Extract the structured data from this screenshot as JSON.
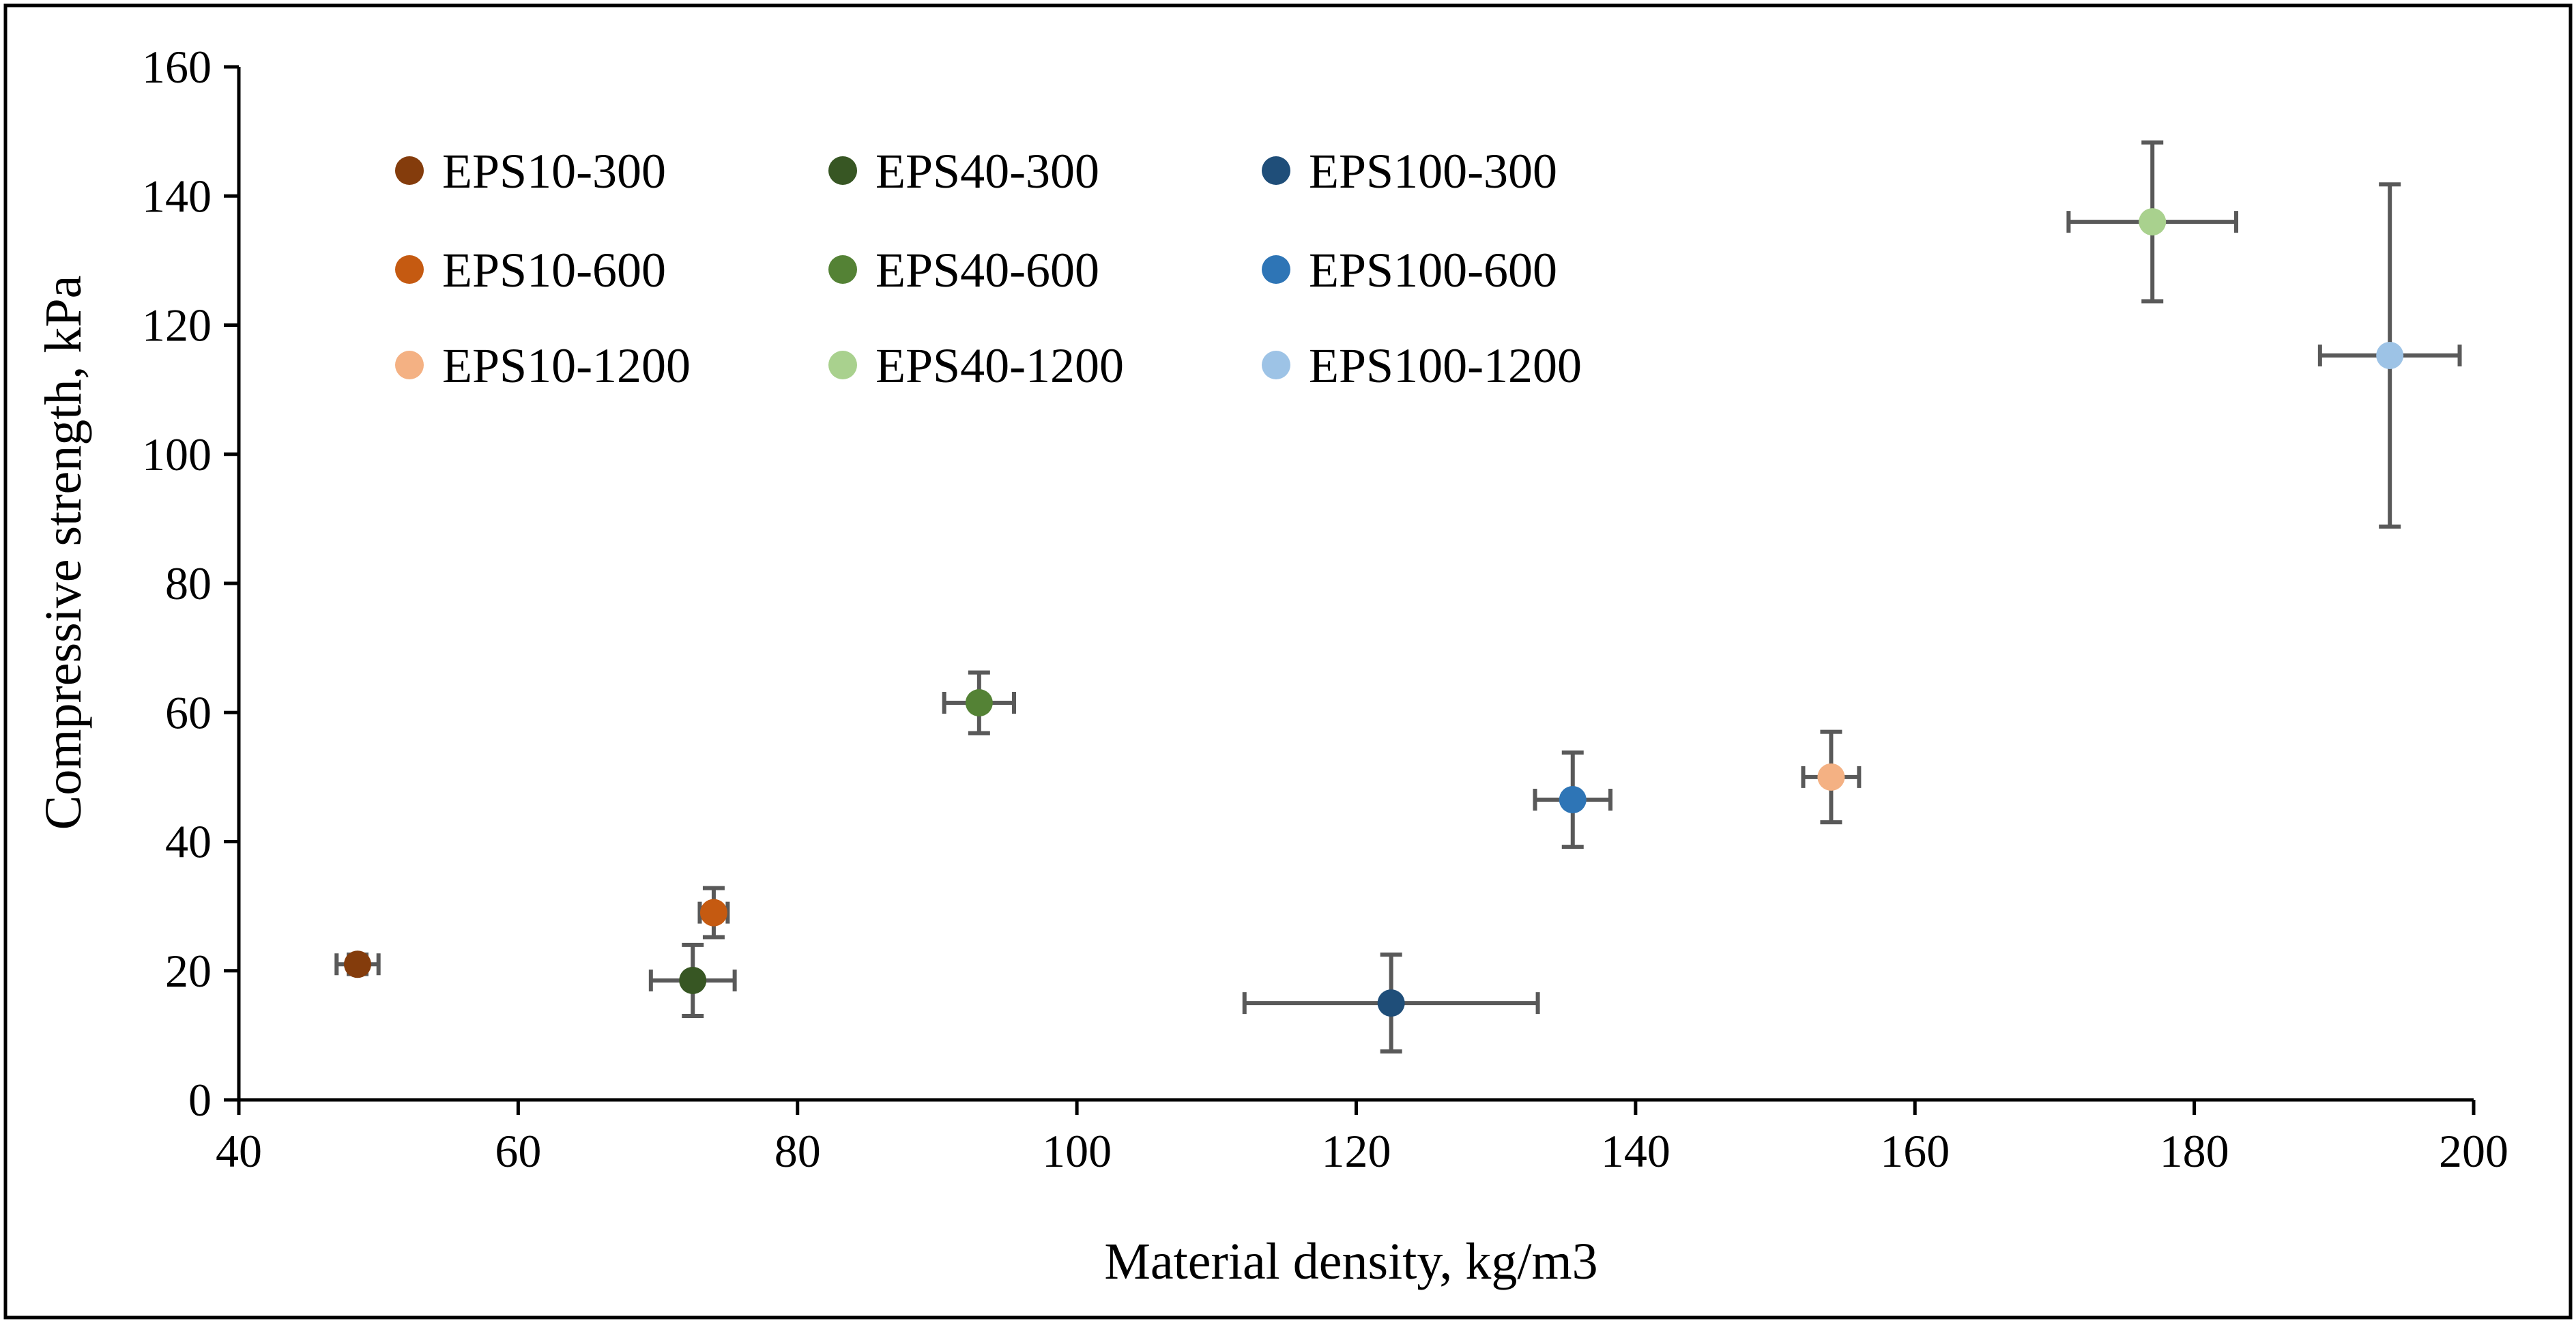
{
  "chart_data": {
    "type": "scatter",
    "title": "",
    "xlabel": "Material density, kg/m3",
    "ylabel": "Compressive strength, kPa",
    "xlim": [
      40,
      200
    ],
    "ylim": [
      0,
      160
    ],
    "xticks": [
      40,
      60,
      80,
      100,
      120,
      140,
      160,
      180,
      200
    ],
    "yticks": [
      0,
      20,
      40,
      60,
      80,
      100,
      120,
      140,
      160
    ],
    "grid": false,
    "legend_position": "top-left",
    "error_bar_color": "#595959",
    "series": [
      {
        "name": "EPS10-300",
        "color": "#843C0C",
        "x": 48.5,
        "y": 21,
        "x_err": 1.5,
        "y_err": 1.5
      },
      {
        "name": "EPS40-300",
        "color": "#375623",
        "x": 72.5,
        "y": 18.5,
        "x_err": 3.0,
        "y_err": 5.5
      },
      {
        "name": "EPS100-300",
        "color": "#1F4E79",
        "x": 122.5,
        "y": 15,
        "x_err": 10.5,
        "y_err": 7.5
      },
      {
        "name": "EPS10-600",
        "color": "#C55A11",
        "x": 74,
        "y": 29,
        "x_err": 1.0,
        "y_err": 3.8
      },
      {
        "name": "EPS40-600",
        "color": "#548235",
        "x": 93,
        "y": 61.5,
        "x_err": 2.5,
        "y_err": 4.7
      },
      {
        "name": "EPS100-600",
        "color": "#2E75B6",
        "x": 135.5,
        "y": 46.5,
        "x_err": 2.7,
        "y_err": 7.3
      },
      {
        "name": "EPS10-1200",
        "color": "#F4B183",
        "x": 154,
        "y": 50,
        "x_err": 2.0,
        "y_err": 7.0
      },
      {
        "name": "EPS40-1200",
        "color": "#A9D18E",
        "x": 177,
        "y": 136,
        "x_err": 6.0,
        "y_err": 12.3
      },
      {
        "name": "EPS100-1200",
        "color": "#9DC3E6",
        "x": 194,
        "y": 115.3,
        "x_err": 5.0,
        "y_err": 26.5
      }
    ],
    "legend_order": [
      [
        "EPS10-300",
        "EPS40-300",
        "EPS100-300"
      ],
      [
        "EPS10-600",
        "EPS40-600",
        "EPS100-600"
      ],
      [
        "EPS10-1200",
        "EPS40-1200",
        "EPS100-1200"
      ]
    ]
  }
}
